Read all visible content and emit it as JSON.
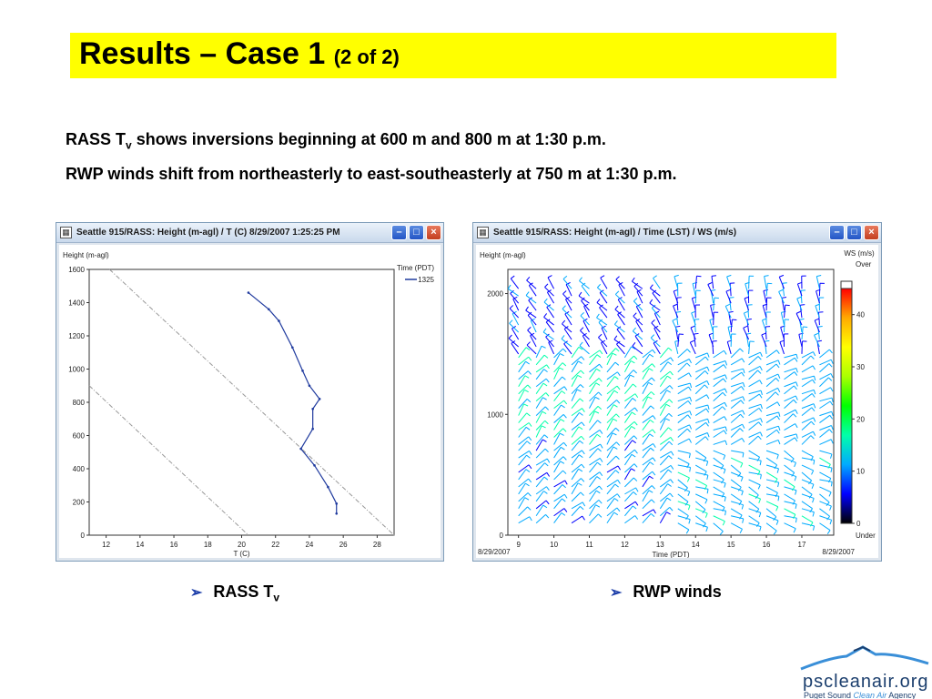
{
  "slide": {
    "title_main": "Results – Case 1",
    "title_sub": "(2 of 2)",
    "bullet1": {
      "prefix": "RASS T",
      "sub": "v",
      "rest": " shows inversions beginning at 600 m and 800 m at 1:30 p.m."
    },
    "bullet2": "RWP winds shift from northeasterly to east-southeasterly at 750 m at 1:30 p.m.",
    "caption_left": {
      "prefix": "RASS T",
      "sub": "v"
    },
    "caption_right": "RWP winds"
  },
  "logo": {
    "word": "pscleanair.org",
    "tag_pre": "Puget Sound ",
    "tag_accent": "Clean Air",
    "tag_post": " Agency",
    "color": "#1c3f6e",
    "accent_color": "#3a8fd8"
  },
  "window_left": {
    "title": "Seattle 915/RASS:  Height (m-agl) / T (C)   8/29/2007 1:25:25 PM"
  },
  "window_right": {
    "title": "Seattle 915/RASS:  Height (m-agl) / Time (LST) / WS (m/s)"
  },
  "chart_data": [
    {
      "type": "line",
      "ylabel": "Height (m-agl)",
      "xlabel": "T (C)",
      "xlim": [
        11,
        29
      ],
      "ylim": [
        0,
        1600
      ],
      "xticks": [
        12,
        14,
        16,
        18,
        20,
        22,
        24,
        26,
        28
      ],
      "yticks": [
        0,
        200,
        400,
        600,
        800,
        1000,
        1200,
        1400,
        1600
      ],
      "legend_title": "Time (PDT)",
      "legend_placement": "top-right",
      "series": [
        {
          "name": "1325",
          "color": "#1f3a9e",
          "points": [
            [
              25.6,
              130
            ],
            [
              25.6,
              190
            ],
            [
              25.1,
              290
            ],
            [
              24.3,
              420
            ],
            [
              23.5,
              520
            ],
            [
              24.2,
              640
            ],
            [
              24.2,
              760
            ],
            [
              24.6,
              820
            ],
            [
              24.0,
              900
            ],
            [
              23.6,
              990
            ],
            [
              23.0,
              1130
            ],
            [
              22.2,
              1290
            ],
            [
              21.6,
              1360
            ],
            [
              20.4,
              1460
            ]
          ]
        }
      ],
      "reference_lines": [
        {
          "style": "dash-dot",
          "color": "#999999",
          "points": [
            [
              12.2,
              1600
            ],
            [
              29,
              0
            ]
          ]
        },
        {
          "style": "dash-dot",
          "color": "#999999",
          "points": [
            [
              11,
              900
            ],
            [
              20.4,
              0
            ]
          ]
        }
      ]
    },
    {
      "type": "wind-barbs",
      "ylabel": "Height (m-agl)",
      "xlabel": "Time (PDT)",
      "xlim": [
        8.7,
        17.9
      ],
      "ylim": [
        0,
        2200
      ],
      "xticks": [
        9,
        10,
        11,
        12,
        13,
        14,
        15,
        16,
        17
      ],
      "yticks": [
        0,
        1000,
        2000
      ],
      "date_left": "8/29/2007",
      "date_right": "8/29/2007",
      "colorbar": {
        "title": "WS (m/s)",
        "top_label": "Over",
        "bottom_label": "Under",
        "ticks": [
          0,
          10,
          20,
          30,
          40
        ],
        "range": [
          0,
          45
        ],
        "colors": [
          "#000000",
          "#0000ff",
          "#00aaff",
          "#00ffaa",
          "#00ff00",
          "#aaff00",
          "#ffff00",
          "#ffaa00",
          "#ff0000"
        ]
      },
      "times": [
        9.0,
        9.5,
        10.0,
        10.5,
        11.0,
        11.5,
        12.0,
        12.5,
        13.0,
        13.5,
        14.0,
        14.5,
        15.0,
        15.5,
        16.0,
        16.5,
        17.0,
        17.5
      ],
      "layers": [
        {
          "h_min": 100,
          "h_max": 750,
          "dir_early": 45,
          "dir_late": 115,
          "speed_early": 8,
          "speed_late": 10
        },
        {
          "h_min": 750,
          "h_max": 1500,
          "dir_early": 40,
          "dir_late": 60,
          "speed_early": 12,
          "speed_late": 9
        },
        {
          "h_min": 1500,
          "h_max": 2100,
          "dir_early": 320,
          "dir_late": 350,
          "speed_early": 5,
          "speed_late": 6
        }
      ],
      "shift": {
        "height": 750,
        "time": 13.5
      }
    }
  ]
}
